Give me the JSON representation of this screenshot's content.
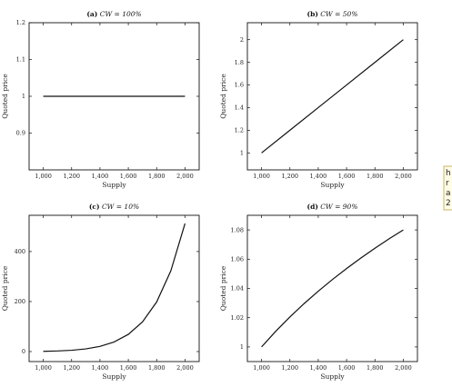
{
  "overflow_text": {
    "lines": [
      "h",
      "r",
      "a",
      "2"
    ],
    "box_color": "#fffde6",
    "border_color": "#c9b46a"
  },
  "chart_data": [
    {
      "type": "line",
      "panel_tag": "(a)",
      "title": "CW = 100%",
      "xlabel": "Supply",
      "ylabel": "Quoted price",
      "xlim": [
        900,
        2100
      ],
      "ylim": [
        0.8,
        1.2
      ],
      "x_ticks": [
        1000,
        1200,
        1400,
        1600,
        1800,
        2000
      ],
      "x_tick_labels": [
        "1,000",
        "1,200",
        "1,400",
        "1,600",
        "1,800",
        "2,000"
      ],
      "y_ticks": [
        0.9,
        1.0,
        1.1,
        1.2
      ],
      "y_tick_labels": [
        "0.9",
        "1",
        "1.1",
        "1.2"
      ],
      "series": [
        {
          "x": [
            1000,
            1200,
            1400,
            1600,
            1800,
            2000
          ],
          "y": [
            1,
            1,
            1,
            1,
            1,
            1
          ]
        }
      ]
    },
    {
      "type": "line",
      "panel_tag": "(b)",
      "title": "CW = 50%",
      "xlabel": "Supply",
      "ylabel": "Quoted price",
      "xlim": [
        900,
        2100
      ],
      "ylim": [
        0.85,
        2.15
      ],
      "x_ticks": [
        1000,
        1200,
        1400,
        1600,
        1800,
        2000
      ],
      "x_tick_labels": [
        "1,000",
        "1,200",
        "1,400",
        "1,600",
        "1,800",
        "2,000"
      ],
      "y_ticks": [
        1,
        1.2,
        1.4,
        1.6,
        1.8,
        2
      ],
      "y_tick_labels": [
        "1",
        "1.2",
        "1.4",
        "1.6",
        "1.8",
        "2"
      ],
      "series": [
        {
          "x": [
            1000,
            1200,
            1400,
            1600,
            1800,
            2000
          ],
          "y": [
            1.0,
            1.2,
            1.4,
            1.6,
            1.8,
            2.0
          ]
        }
      ]
    },
    {
      "type": "line",
      "panel_tag": "(c)",
      "title": "CW = 10%",
      "xlabel": "Supply",
      "ylabel": "Quoted price",
      "xlim": [
        900,
        2100
      ],
      "ylim": [
        -40,
        545
      ],
      "x_ticks": [
        1000,
        1200,
        1400,
        1600,
        1800,
        2000
      ],
      "x_tick_labels": [
        "1,000",
        "1,200",
        "1,400",
        "1,600",
        "1,800",
        "2,000"
      ],
      "y_ticks": [
        0,
        200,
        400
      ],
      "y_tick_labels": [
        "0",
        "200",
        "400"
      ],
      "series": [
        {
          "x": [
            1000,
            1100,
            1200,
            1300,
            1400,
            1500,
            1600,
            1700,
            1800,
            1900,
            2000
          ],
          "y": [
            1,
            2.4,
            5.2,
            10.6,
            20.7,
            38.4,
            68.7,
            118.6,
            198.4,
            322.7,
            512
          ]
        }
      ]
    },
    {
      "type": "line",
      "panel_tag": "(d)",
      "title": "CW = 90%",
      "xlabel": "Supply",
      "ylabel": "Quoted price",
      "xlim": [
        900,
        2100
      ],
      "ylim": [
        0.99,
        1.09
      ],
      "x_ticks": [
        1000,
        1200,
        1400,
        1600,
        1800,
        2000
      ],
      "x_tick_labels": [
        "1,000",
        "1,200",
        "1,400",
        "1,600",
        "1,800",
        "2,000"
      ],
      "y_ticks": [
        1,
        1.02,
        1.04,
        1.06,
        1.08
      ],
      "y_tick_labels": [
        "1",
        "1.02",
        "1.04",
        "1.06",
        "1.08"
      ],
      "series": [
        {
          "x": [
            1000,
            1100,
            1200,
            1300,
            1400,
            1500,
            1600,
            1700,
            1800,
            1900,
            2000
          ],
          "y": [
            1.0,
            1.0107,
            1.0205,
            1.0296,
            1.0381,
            1.0461,
            1.0536,
            1.0607,
            1.0675,
            1.0739,
            1.08
          ]
        }
      ]
    }
  ]
}
